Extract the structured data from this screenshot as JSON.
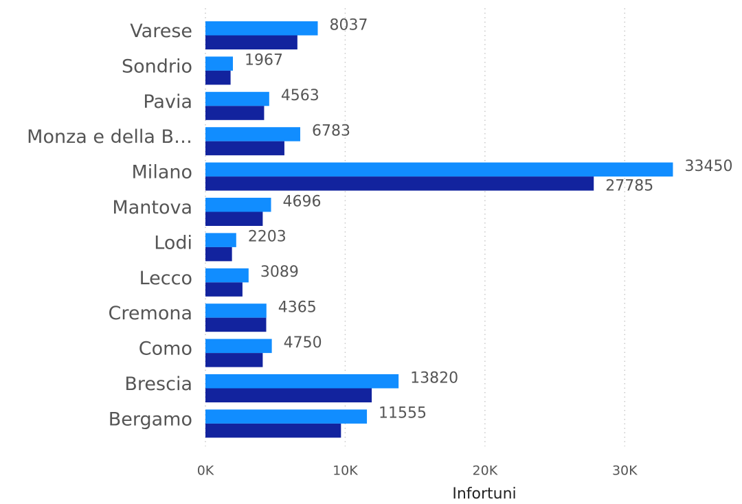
{
  "chart_data": {
    "type": "bar",
    "orientation": "horizontal",
    "x_label": "Infortuni",
    "categories": [
      "Varese",
      "Sondrio",
      "Pavia",
      "Monza e della B…",
      "Milano",
      "Mantova",
      "Lodi",
      "Lecco",
      "Cremona",
      "Como",
      "Brescia",
      "Bergamo"
    ],
    "series": [
      {
        "color": "#118DFF",
        "values": [
          8037,
          1967,
          4563,
          6783,
          33450,
          4696,
          2203,
          3089,
          4365,
          4750,
          13820,
          11555
        ]
      },
      {
        "color": "#12239E",
        "values": [
          6580,
          1800,
          4200,
          5650,
          27785,
          4100,
          1900,
          2650,
          4350,
          4100,
          11900,
          9700
        ],
        "value_labels": [
          null,
          null,
          null,
          null,
          "27785",
          null,
          null,
          null,
          null,
          null,
          null,
          null
        ]
      }
    ],
    "xlim": [
      0,
      35000
    ],
    "xticks": [
      {
        "value": 0,
        "label": "0K"
      },
      {
        "value": 10000,
        "label": "10K"
      },
      {
        "value": 20000,
        "label": "20K"
      },
      {
        "value": 30000,
        "label": "30K"
      }
    ],
    "grid": true
  }
}
